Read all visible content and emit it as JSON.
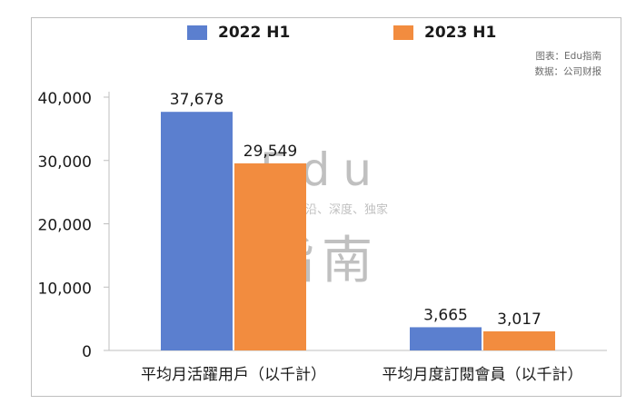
{
  "chart_data": {
    "type": "bar",
    "categories": [
      "平均月活躍用戶（以千計）",
      "平均月度訂閱會員（以千計）"
    ],
    "series": [
      {
        "name": "2022 H1",
        "values": [
          37678,
          3665
        ],
        "color": "#5b7fcf"
      },
      {
        "name": "2023 H1",
        "values": [
          29549,
          3017
        ],
        "color": "#f28c3f"
      }
    ],
    "data_labels": [
      [
        "37,678",
        "3,665"
      ],
      [
        "29,549",
        "3,017"
      ]
    ],
    "y_ticks": [
      "0",
      "10,000",
      "20,000",
      "30,000",
      "40,000"
    ],
    "ylim": [
      0,
      40000
    ],
    "grid": false,
    "legend_position": "top"
  },
  "notes": {
    "chart_source": "图表：Edu指南",
    "data_source": "数据：公司财报"
  },
  "watermark": {
    "line1": "Edu",
    "line2": "教育行业，前沿、深度、独家",
    "line3": "指南"
  }
}
